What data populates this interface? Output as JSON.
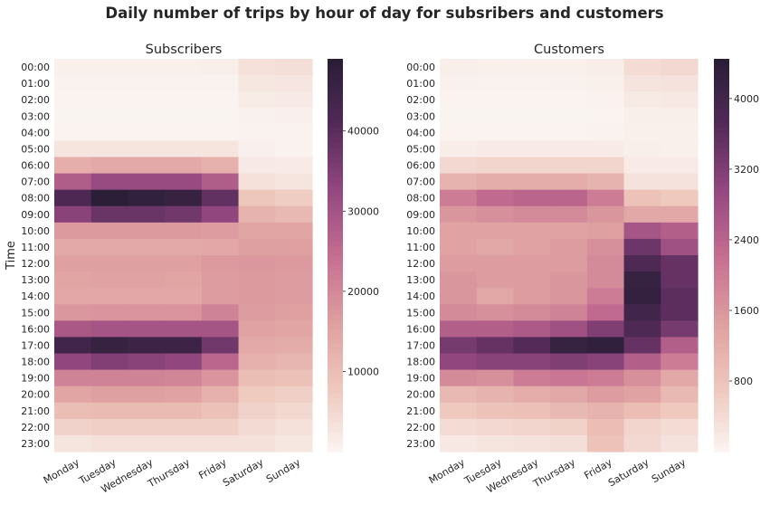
{
  "figure": {
    "title": "Daily number of trips by hour of day for subsribers and customers",
    "ylabel": "Time"
  },
  "chart_data": [
    {
      "type": "heatmap",
      "title": "Subscribers",
      "xlabel": "",
      "ylabel": "Time",
      "columns": [
        "Monday",
        "Tuesday",
        "Wednesday",
        "Thursday",
        "Friday",
        "Saturday",
        "Sunday"
      ],
      "rows": [
        "00:00",
        "01:00",
        "02:00",
        "03:00",
        "04:00",
        "05:00",
        "06:00",
        "07:00",
        "08:00",
        "09:00",
        "10:00",
        "11:00",
        "12:00",
        "13:00",
        "14:00",
        "15:00",
        "16:00",
        "17:00",
        "18:00",
        "19:00",
        "20:00",
        "21:00",
        "22:00",
        "23:00"
      ],
      "values": [
        [
          1000,
          1000,
          1000,
          1000,
          1200,
          3500,
          3800
        ],
        [
          600,
          500,
          500,
          500,
          600,
          2500,
          2700
        ],
        [
          300,
          300,
          300,
          300,
          300,
          1600,
          2000
        ],
        [
          200,
          200,
          200,
          200,
          200,
          700,
          800
        ],
        [
          300,
          300,
          300,
          300,
          300,
          500,
          500
        ],
        [
          3000,
          3000,
          3000,
          3000,
          2800,
          800,
          600
        ],
        [
          13000,
          14000,
          14000,
          14000,
          12500,
          2000,
          1700
        ],
        [
          28000,
          32000,
          32000,
          32000,
          28000,
          3500,
          3000
        ],
        [
          42000,
          48500,
          47000,
          46000,
          39000,
          8000,
          7000
        ],
        [
          34000,
          38000,
          38000,
          37000,
          33000,
          12000,
          11000
        ],
        [
          17000,
          17000,
          17000,
          17000,
          16500,
          15000,
          15000
        ],
        [
          14000,
          14000,
          14000,
          14000,
          14500,
          16000,
          16000
        ],
        [
          16000,
          16000,
          16000,
          16000,
          17000,
          17500,
          17000
        ],
        [
          15000,
          15500,
          15500,
          15000,
          16500,
          17000,
          16500
        ],
        [
          14500,
          14500,
          14500,
          14500,
          16500,
          17000,
          16500
        ],
        [
          17500,
          18000,
          18000,
          18000,
          21000,
          16500,
          16000
        ],
        [
          29000,
          30000,
          30000,
          30000,
          30000,
          15500,
          15000
        ],
        [
          44000,
          46000,
          45000,
          45000,
          37000,
          14000,
          13500
        ],
        [
          33000,
          35000,
          34000,
          33000,
          26000,
          12500,
          11500
        ],
        [
          21000,
          21000,
          21000,
          20500,
          18000,
          10000,
          9000
        ],
        [
          15000,
          16000,
          16000,
          15500,
          12500,
          7500,
          6500
        ],
        [
          10000,
          10500,
          10500,
          10500,
          9000,
          6000,
          5000
        ],
        [
          6000,
          6500,
          6500,
          6500,
          6500,
          4500,
          3500
        ],
        [
          3000,
          3500,
          3500,
          3500,
          3500,
          3500,
          2500
        ]
      ],
      "colorbar": {
        "min": 0,
        "max": 49000,
        "ticks": [
          10000,
          20000,
          30000,
          40000
        ]
      }
    },
    {
      "type": "heatmap",
      "title": "Customers",
      "xlabel": "",
      "ylabel": "",
      "columns": [
        "Monday",
        "Tuesday",
        "Wednesday",
        "Thursday",
        "Friday",
        "Saturday",
        "Sunday"
      ],
      "rows": [
        "00:00",
        "01:00",
        "02:00",
        "03:00",
        "04:00",
        "05:00",
        "06:00",
        "07:00",
        "08:00",
        "09:00",
        "10:00",
        "11:00",
        "12:00",
        "13:00",
        "14:00",
        "15:00",
        "16:00",
        "17:00",
        "18:00",
        "19:00",
        "20:00",
        "21:00",
        "22:00",
        "23:00"
      ],
      "values": [
        [
          100,
          80,
          80,
          90,
          130,
          400,
          450
        ],
        [
          60,
          50,
          50,
          60,
          80,
          280,
          300
        ],
        [
          30,
          30,
          30,
          30,
          50,
          180,
          200
        ],
        [
          20,
          20,
          20,
          20,
          30,
          100,
          100
        ],
        [
          30,
          30,
          30,
          30,
          40,
          80,
          80
        ],
        [
          120,
          150,
          150,
          150,
          150,
          100,
          80
        ],
        [
          450,
          500,
          500,
          500,
          500,
          150,
          150
        ],
        [
          1100,
          1200,
          1200,
          1200,
          1100,
          300,
          300
        ],
        [
          2000,
          2300,
          2400,
          2400,
          2000,
          800,
          700
        ],
        [
          1600,
          1700,
          1800,
          1800,
          1600,
          1300,
          1300
        ],
        [
          1400,
          1400,
          1400,
          1400,
          1450,
          2700,
          2500
        ],
        [
          1400,
          1300,
          1400,
          1500,
          1700,
          3400,
          2800
        ],
        [
          1500,
          1500,
          1500,
          1500,
          1800,
          3800,
          3500
        ],
        [
          1600,
          1500,
          1500,
          1600,
          1800,
          4200,
          3500
        ],
        [
          1600,
          1300,
          1500,
          1600,
          2000,
          4250,
          3600
        ],
        [
          1800,
          1700,
          1800,
          1900,
          2300,
          4000,
          3600
        ],
        [
          2500,
          2500,
          2600,
          2800,
          3200,
          3800,
          3300
        ],
        [
          3300,
          3500,
          3700,
          4200,
          4300,
          3500,
          2500
        ],
        [
          3000,
          3100,
          3100,
          3200,
          3100,
          2500,
          2000
        ],
        [
          1800,
          1700,
          2000,
          2100,
          2000,
          1700,
          1300
        ],
        [
          1000,
          1100,
          1200,
          1300,
          1500,
          1400,
          1000
        ],
        [
          700,
          800,
          850,
          1000,
          1100,
          900,
          700
        ],
        [
          400,
          450,
          500,
          550,
          900,
          500,
          400
        ],
        [
          200,
          250,
          300,
          350,
          800,
          450,
          300
        ]
      ],
      "colorbar": {
        "min": 0,
        "max": 4450,
        "ticks": [
          800,
          1600,
          2400,
          3200,
          4000
        ]
      }
    }
  ]
}
